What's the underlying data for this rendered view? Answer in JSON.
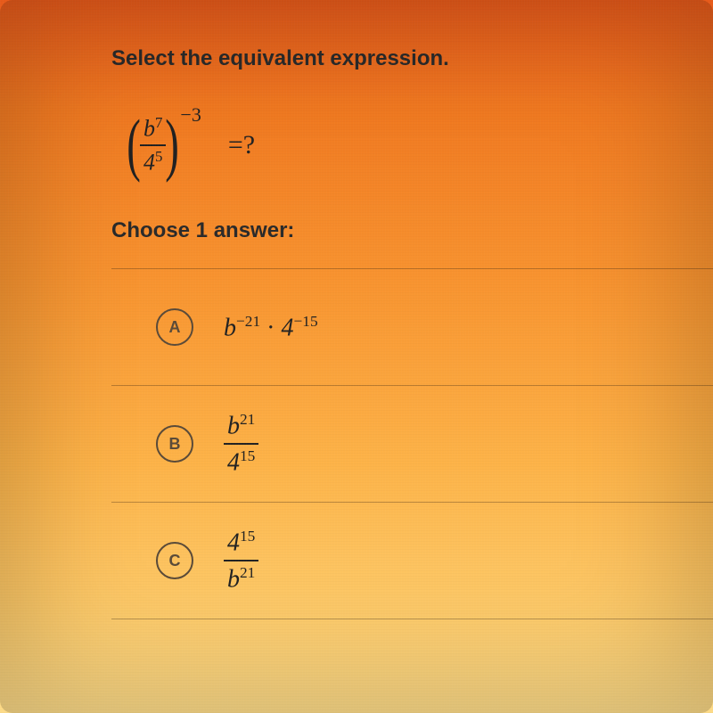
{
  "prompt_text": "Select the equivalent expression.",
  "expression": {
    "numerator_base": "b",
    "numerator_exp": "7",
    "denominator_base": "4",
    "denominator_exp": "5",
    "outer_exp": "−3",
    "equals_text": "=?"
  },
  "choose_text": "Choose 1 answer:",
  "options": {
    "a": {
      "letter": "A",
      "base1": "b",
      "exp1": "−21",
      "dot": " · ",
      "base2": "4",
      "exp2": "−15"
    },
    "b": {
      "letter": "B",
      "num_base": "b",
      "num_exp": "21",
      "den_base": "4",
      "den_exp": "15"
    },
    "c": {
      "letter": "C",
      "num_base": "4",
      "num_exp": "15",
      "den_base": "b",
      "den_exp": "21"
    }
  },
  "styling": {
    "bg_gradient_stops": [
      "#e85a1a",
      "#f07820",
      "#f89430",
      "#fdb348",
      "#fdc968",
      "#fddb88"
    ],
    "text_color": "#2a2a2a",
    "math_color": "#222222",
    "divider_color": "rgba(60,40,20,0.35)",
    "circle_border": "#5a4a38",
    "prompt_fontsize": 24,
    "math_fontsize": 28,
    "option_height": 130
  }
}
